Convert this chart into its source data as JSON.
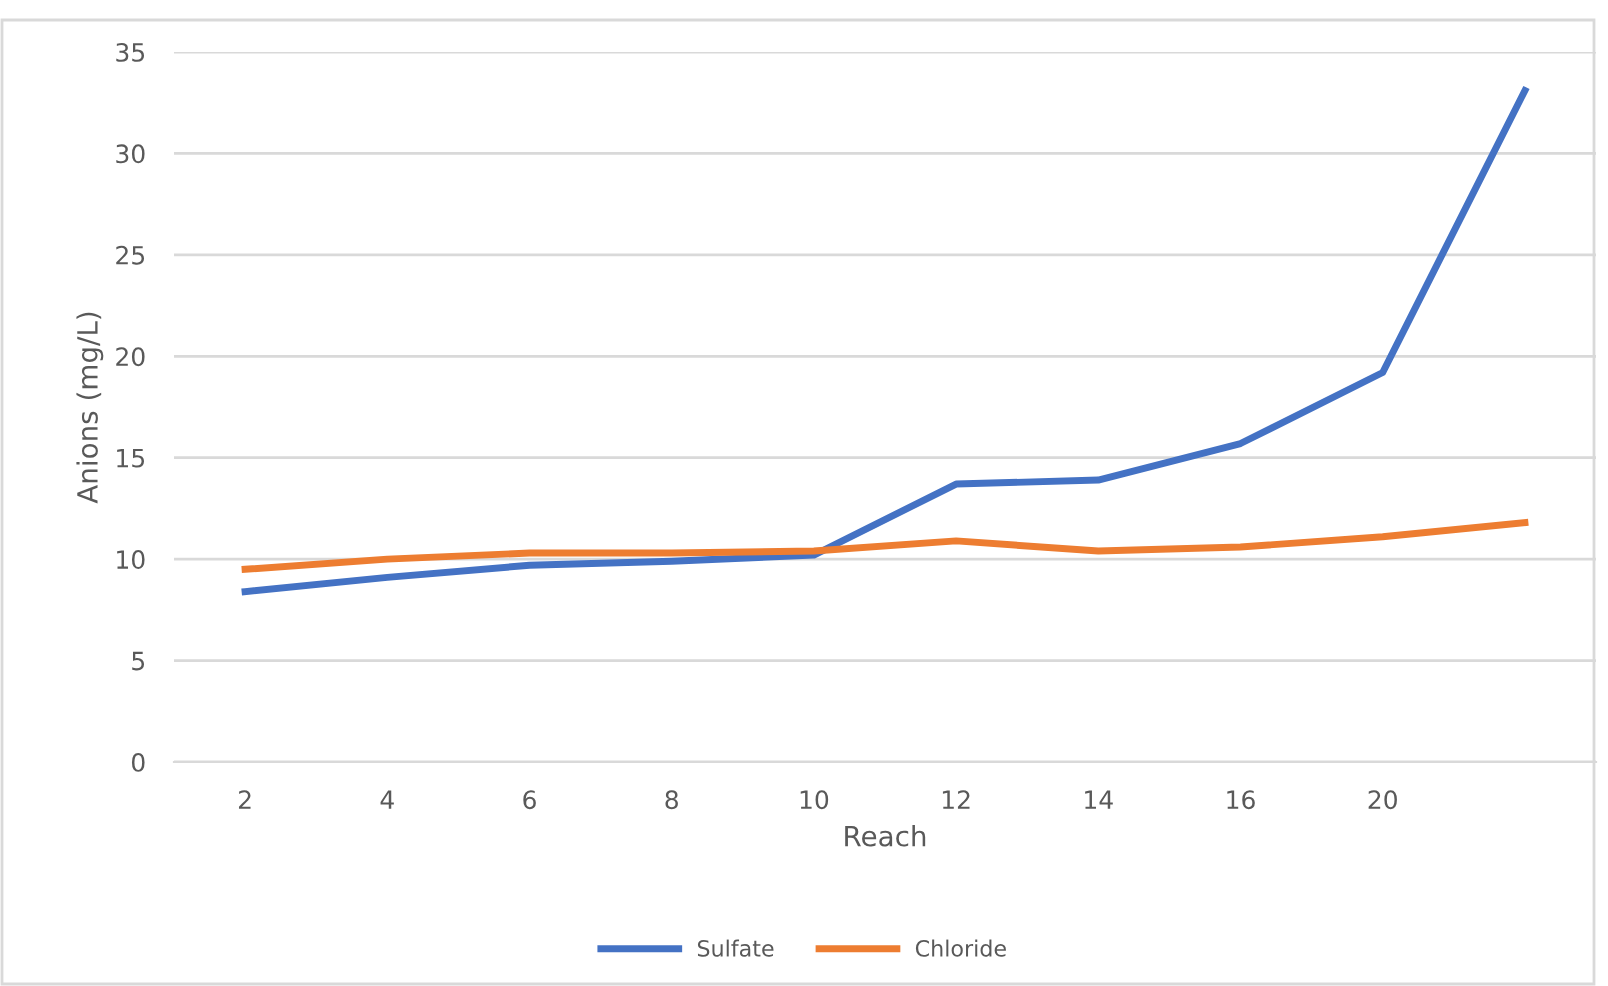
{
  "chart_data": {
    "type": "line",
    "xlabel": "Reach",
    "ylabel": "Anions (mg/L)",
    "categories": [
      "2",
      "4",
      "6",
      "8",
      "10",
      "12",
      "14",
      "16",
      "20",
      null
    ],
    "series": [
      {
        "name": "Sulfate",
        "color": "#4472c4",
        "values": [
          8.4,
          9.1,
          9.7,
          9.9,
          10.2,
          13.7,
          13.9,
          15.7,
          19.2,
          33.1
        ]
      },
      {
        "name": "Chloride",
        "color": "#ed7d31",
        "values": [
          9.5,
          10.0,
          10.3,
          10.3,
          10.4,
          10.9,
          10.4,
          10.6,
          11.1,
          11.8
        ]
      }
    ],
    "ylim": [
      0,
      35
    ],
    "yticks": [
      0,
      5,
      10,
      15,
      20,
      25,
      30,
      35
    ],
    "grid": "y",
    "legend": "bottom",
    "marker": "none",
    "line_style": "solid"
  }
}
